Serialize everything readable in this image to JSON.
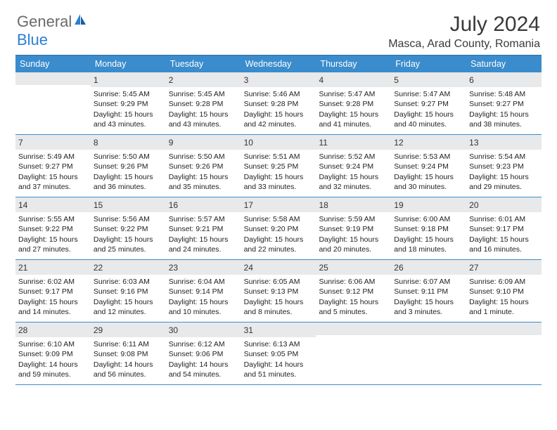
{
  "brand": {
    "part1": "General",
    "part2": "Blue"
  },
  "title": "July 2024",
  "location": "Masca, Arad County, Romania",
  "colors": {
    "header_bg": "#3a8ccc",
    "header_border": "#2a6fa8",
    "daynum_bg": "#e7e9eb",
    "week_divider": "#3a8ccc",
    "text": "#222222",
    "brand_gray": "#6a6a6a",
    "brand_blue": "#2a7fd4"
  },
  "daysOfWeek": [
    "Sunday",
    "Monday",
    "Tuesday",
    "Wednesday",
    "Thursday",
    "Friday",
    "Saturday"
  ],
  "weeks": [
    [
      {
        "n": "",
        "sunrise": "",
        "sunset": "",
        "daylight": ""
      },
      {
        "n": "1",
        "sunrise": "Sunrise: 5:45 AM",
        "sunset": "Sunset: 9:29 PM",
        "daylight": "Daylight: 15 hours and 43 minutes."
      },
      {
        "n": "2",
        "sunrise": "Sunrise: 5:45 AM",
        "sunset": "Sunset: 9:28 PM",
        "daylight": "Daylight: 15 hours and 43 minutes."
      },
      {
        "n": "3",
        "sunrise": "Sunrise: 5:46 AM",
        "sunset": "Sunset: 9:28 PM",
        "daylight": "Daylight: 15 hours and 42 minutes."
      },
      {
        "n": "4",
        "sunrise": "Sunrise: 5:47 AM",
        "sunset": "Sunset: 9:28 PM",
        "daylight": "Daylight: 15 hours and 41 minutes."
      },
      {
        "n": "5",
        "sunrise": "Sunrise: 5:47 AM",
        "sunset": "Sunset: 9:27 PM",
        "daylight": "Daylight: 15 hours and 40 minutes."
      },
      {
        "n": "6",
        "sunrise": "Sunrise: 5:48 AM",
        "sunset": "Sunset: 9:27 PM",
        "daylight": "Daylight: 15 hours and 38 minutes."
      }
    ],
    [
      {
        "n": "7",
        "sunrise": "Sunrise: 5:49 AM",
        "sunset": "Sunset: 9:27 PM",
        "daylight": "Daylight: 15 hours and 37 minutes."
      },
      {
        "n": "8",
        "sunrise": "Sunrise: 5:50 AM",
        "sunset": "Sunset: 9:26 PM",
        "daylight": "Daylight: 15 hours and 36 minutes."
      },
      {
        "n": "9",
        "sunrise": "Sunrise: 5:50 AM",
        "sunset": "Sunset: 9:26 PM",
        "daylight": "Daylight: 15 hours and 35 minutes."
      },
      {
        "n": "10",
        "sunrise": "Sunrise: 5:51 AM",
        "sunset": "Sunset: 9:25 PM",
        "daylight": "Daylight: 15 hours and 33 minutes."
      },
      {
        "n": "11",
        "sunrise": "Sunrise: 5:52 AM",
        "sunset": "Sunset: 9:24 PM",
        "daylight": "Daylight: 15 hours and 32 minutes."
      },
      {
        "n": "12",
        "sunrise": "Sunrise: 5:53 AM",
        "sunset": "Sunset: 9:24 PM",
        "daylight": "Daylight: 15 hours and 30 minutes."
      },
      {
        "n": "13",
        "sunrise": "Sunrise: 5:54 AM",
        "sunset": "Sunset: 9:23 PM",
        "daylight": "Daylight: 15 hours and 29 minutes."
      }
    ],
    [
      {
        "n": "14",
        "sunrise": "Sunrise: 5:55 AM",
        "sunset": "Sunset: 9:22 PM",
        "daylight": "Daylight: 15 hours and 27 minutes."
      },
      {
        "n": "15",
        "sunrise": "Sunrise: 5:56 AM",
        "sunset": "Sunset: 9:22 PM",
        "daylight": "Daylight: 15 hours and 25 minutes."
      },
      {
        "n": "16",
        "sunrise": "Sunrise: 5:57 AM",
        "sunset": "Sunset: 9:21 PM",
        "daylight": "Daylight: 15 hours and 24 minutes."
      },
      {
        "n": "17",
        "sunrise": "Sunrise: 5:58 AM",
        "sunset": "Sunset: 9:20 PM",
        "daylight": "Daylight: 15 hours and 22 minutes."
      },
      {
        "n": "18",
        "sunrise": "Sunrise: 5:59 AM",
        "sunset": "Sunset: 9:19 PM",
        "daylight": "Daylight: 15 hours and 20 minutes."
      },
      {
        "n": "19",
        "sunrise": "Sunrise: 6:00 AM",
        "sunset": "Sunset: 9:18 PM",
        "daylight": "Daylight: 15 hours and 18 minutes."
      },
      {
        "n": "20",
        "sunrise": "Sunrise: 6:01 AM",
        "sunset": "Sunset: 9:17 PM",
        "daylight": "Daylight: 15 hours and 16 minutes."
      }
    ],
    [
      {
        "n": "21",
        "sunrise": "Sunrise: 6:02 AM",
        "sunset": "Sunset: 9:17 PM",
        "daylight": "Daylight: 15 hours and 14 minutes."
      },
      {
        "n": "22",
        "sunrise": "Sunrise: 6:03 AM",
        "sunset": "Sunset: 9:16 PM",
        "daylight": "Daylight: 15 hours and 12 minutes."
      },
      {
        "n": "23",
        "sunrise": "Sunrise: 6:04 AM",
        "sunset": "Sunset: 9:14 PM",
        "daylight": "Daylight: 15 hours and 10 minutes."
      },
      {
        "n": "24",
        "sunrise": "Sunrise: 6:05 AM",
        "sunset": "Sunset: 9:13 PM",
        "daylight": "Daylight: 15 hours and 8 minutes."
      },
      {
        "n": "25",
        "sunrise": "Sunrise: 6:06 AM",
        "sunset": "Sunset: 9:12 PM",
        "daylight": "Daylight: 15 hours and 5 minutes."
      },
      {
        "n": "26",
        "sunrise": "Sunrise: 6:07 AM",
        "sunset": "Sunset: 9:11 PM",
        "daylight": "Daylight: 15 hours and 3 minutes."
      },
      {
        "n": "27",
        "sunrise": "Sunrise: 6:09 AM",
        "sunset": "Sunset: 9:10 PM",
        "daylight": "Daylight: 15 hours and 1 minute."
      }
    ],
    [
      {
        "n": "28",
        "sunrise": "Sunrise: 6:10 AM",
        "sunset": "Sunset: 9:09 PM",
        "daylight": "Daylight: 14 hours and 59 minutes."
      },
      {
        "n": "29",
        "sunrise": "Sunrise: 6:11 AM",
        "sunset": "Sunset: 9:08 PM",
        "daylight": "Daylight: 14 hours and 56 minutes."
      },
      {
        "n": "30",
        "sunrise": "Sunrise: 6:12 AM",
        "sunset": "Sunset: 9:06 PM",
        "daylight": "Daylight: 14 hours and 54 minutes."
      },
      {
        "n": "31",
        "sunrise": "Sunrise: 6:13 AM",
        "sunset": "Sunset: 9:05 PM",
        "daylight": "Daylight: 14 hours and 51 minutes."
      },
      {
        "n": "",
        "sunrise": "",
        "sunset": "",
        "daylight": ""
      },
      {
        "n": "",
        "sunrise": "",
        "sunset": "",
        "daylight": ""
      },
      {
        "n": "",
        "sunrise": "",
        "sunset": "",
        "daylight": ""
      }
    ]
  ]
}
